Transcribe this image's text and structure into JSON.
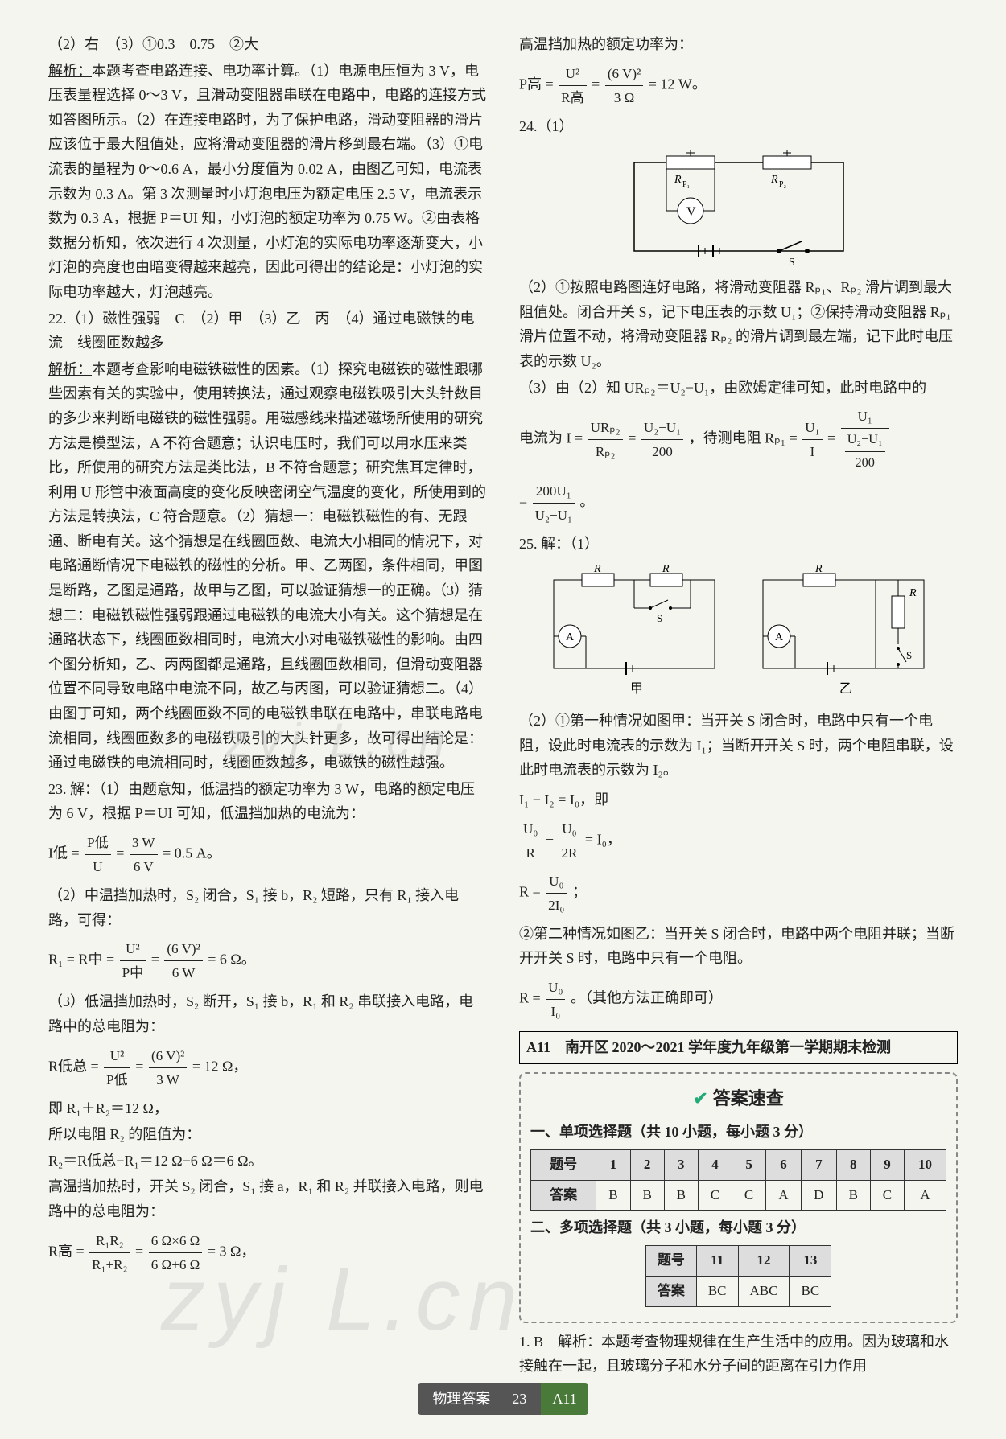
{
  "leftCol": {
    "l1": "（2）右　（3）①0.3　0.75　②大",
    "l2a": "解析：",
    "l2b": "本题考查电路连接、电功率计算。（1）电源电压恒为 3 V，电压表量程选择 0～3 V，且滑动变阻器串联在电路中，电路的连接方式如答图所示。（2）在连接电路时，为了保护电路，滑动变阻器的滑片应该位于最大阻值处，应将滑动变阻器的滑片移到最右端。（3）①电流表的量程为 0～0.6 A，最小分度值为 0.02 A，由图乙可知，电流表示数为 0.3 A。第 3 次测量时小灯泡电压为额定电压 2.5 V，电流表示数为 0.3 A，根据 P＝UI 知，小灯泡的额定功率为 0.75 W。②由表格数据分析知，依次进行 4 次测量，小灯泡的实际电功率逐渐变大，小灯泡的亮度也由暗变得越来越亮，因此可得出的结论是：小灯泡的实际电功率越大，灯泡越亮。",
    "l3": "22.（1）磁性强弱　C　（2）甲　（3）乙　丙　（4）通过电磁铁的电流　线圈匝数越多",
    "l4a": "解析：",
    "l4b": "本题考查影响电磁铁磁性的因素。（1）探究电磁铁的磁性跟哪些因素有关的实验中，使用转换法，通过观察电磁铁吸引大头针数目的多少来判断电磁铁的磁性强弱。用磁感线来描述磁场所使用的研究方法是模型法，A 不符合题意；认识电压时，我们可以用水压来类比，所使用的研究方法是类比法，B 不符合题意；研究焦耳定律时，利用 U 形管中液面高度的变化反映密闭空气温度的变化，所使用到的方法是转换法，C 符合题意。（2）猜想一：电磁铁磁性的有、无跟通、断电有关。这个猜想是在线圈匝数、电流大小相同的情况下，对电路通断情况下电磁铁的磁性的分析。甲、乙两图，条件相同，甲图是断路，乙图是通路，故甲与乙图，可以验证猜想一的正确。（3）猜想二：电磁铁磁性强弱跟通过电磁铁的电流大小有关。这个猜想是在通路状态下，线圈匝数相同时，电流大小对电磁铁磁性的影响。由四个图分析知，乙、丙两图都是通路，且线圈匝数相同，但滑动变阻器位置不同导致电路中电流不同，故乙与丙图，可以验证猜想二。（4）由图丁可知，两个线圈匝数不同的电磁铁串联在电路中，串联电路电流相同，线圈匝数多的电磁铁吸引的大头针更多，故可得出结论是：通过电磁铁的电流相同时，线圈匝数越多，电磁铁的磁性越强。",
    "l5": "23. 解：（1）由题意知，低温挡的额定功率为 3 W，电路的额定电压为 6 V，根据 P＝UI 可知，低温挡加热的电流为：",
    "eq5_lhs": "I低 =",
    "eq5_n1": "P低",
    "eq5_d1": "U",
    "eq5_n2": "3 W",
    "eq5_d2": "6 V",
    "eq5_rhs": "= 0.5 A。",
    "l6": "（2）中温挡加热时，S₂ 闭合，S₁ 接 b，R₂ 短路，只有 R₁ 接入电路，可得：",
    "eq6_lhs": "R₁ = R中 =",
    "eq6_n1": "U²",
    "eq6_d1": "P中",
    "eq6_n2": "(6 V)²",
    "eq6_d2": "6 W",
    "eq6_rhs": "= 6 Ω。",
    "l7": "（3）低温挡加热时，S₂ 断开，S₁ 接 b，R₁ 和 R₂ 串联接入电路，电路中的总电阻为：",
    "eq7_lhs": "R低总 =",
    "eq7_n1": "U²",
    "eq7_d1": "P低",
    "eq7_n2": "(6 V)²",
    "eq7_d2": "3 W",
    "eq7_rhs": "= 12 Ω，",
    "l8": "即 R₁＋R₂＝12 Ω，",
    "l9": "所以电阻 R₂ 的阻值为：",
    "l10": "R₂＝R低总−R₁＝12 Ω−6 Ω＝6 Ω。",
    "l11": "高温挡加热时，开关 S₂ 闭合，S₁ 接 a，R₁ 和 R₂ 并联接入电路，则电路中的总电阻为：",
    "eq11_lhs": "R高 =",
    "eq11_n1": "R₁R₂",
    "eq11_d1": "R₁+R₂",
    "eq11_n2": "6 Ω×6 Ω",
    "eq11_d2": "6 Ω+6 Ω",
    "eq11_rhs": "= 3 Ω，"
  },
  "rightCol": {
    "r1": "高温挡加热的额定功率为：",
    "eqR1_lhs": "P高 =",
    "eqR1_n1": "U²",
    "eqR1_d1": "R高",
    "eqR1_n2": "(6 V)²",
    "eqR1_d2": "3 Ω",
    "eqR1_rhs": "= 12 W。",
    "r2": "24.（1）",
    "diag24_R1": "R",
    "diag24_P1": "P₁",
    "diag24_R2": "R",
    "diag24_P2": "P₂",
    "diag24_V": "V",
    "diag24_S": "S",
    "r3": "（2）①按照电路图连好电路，将滑动变阻器 Rₚ₁、Rₚ₂ 滑片调到最大阻值处。闭合开关 S，记下电压表的示数 U₁；②保持滑动变阻器 Rₚ₁ 滑片位置不动，将滑动变阻器 Rₚ₂ 的滑片调到最左端，记下此时电压表的示数 U₂。",
    "r4": "（3）由（2）知 URₚ₂＝U₂−U₁，由欧姆定律可知，此时电路中的",
    "eqR4a_pre": "电流为 I =",
    "eqR4a_n1": "URₚ₂",
    "eqR4a_d1": "Rₚ₂",
    "eqR4a_n2": "U₂−U₁",
    "eqR4a_d2": "200",
    "eqR4a_mid": "，待测电阻 Rₚ₁ =",
    "eqR4a_n3": "U₁",
    "eqR4a_d3": "I",
    "eqR4a_n4": "U₁",
    "eqR4b_n": "200U₁",
    "eqR4b_d": "U₂−U₁",
    "eqR4b_post": "。",
    "r5": "25. 解：（1）",
    "diag25_R": "R",
    "diag25_A": "A",
    "diag25_S": "S",
    "diag25_cap1": "甲",
    "diag25_cap2": "乙",
    "r6": "（2）①第一种情况如图甲：当开关 S 闭合时，电路中只有一个电阻，设此时电流表的示数为 I₁；当断开开关 S 时，两个电阻串联，设此时电流表的示数为 I₂。",
    "eqR6a": "I₁ − I₂ = I₀，即",
    "eqR6b_n1": "U₀",
    "eqR6b_d1": "R",
    "eqR6b_mid": " − ",
    "eqR6b_n2": "U₀",
    "eqR6b_d2": "2R",
    "eqR6b_post": " = I₀，",
    "eqR6c_lhs": "R =",
    "eqR6c_n": "U₀",
    "eqR6c_d": "2I₀",
    "eqR6c_post": "；",
    "r7": "②第二种情况如图乙：当开关 S 闭合时，电路中两个电阻并联；当断开开关 S 时，电路中只有一个电阻。",
    "eqR7_lhs": "R =",
    "eqR7_n": "U₀",
    "eqR7_d": "I₀",
    "eqR7_post": "。（其他方法正确即可）",
    "sectionBox": "A11　南开区 2020～2021 学年度九年级第一学期期末检测",
    "ansTitle": "答案速查",
    "mcq1_heading": "一、单项选择题（共 10 小题，每小题 3 分）",
    "mcq1": {
      "header": [
        "题号",
        "1",
        "2",
        "3",
        "4",
        "5",
        "6",
        "7",
        "8",
        "9",
        "10"
      ],
      "row": [
        "答案",
        "B",
        "B",
        "B",
        "C",
        "C",
        "A",
        "D",
        "B",
        "C",
        "A"
      ]
    },
    "mcq2_heading": "二、多项选择题（共 3 小题，每小题 3 分）",
    "mcq2": {
      "header": [
        "题号",
        "11",
        "12",
        "13"
      ],
      "row": [
        "答案",
        "BC",
        "ABC",
        "BC"
      ]
    },
    "r8a": "1. B　解析：",
    "r8b": "本题考查物理规律在生产生活中的应用。因为玻璃和水接触在一起，且玻璃分子和水分子间的距离在引力作用"
  },
  "footer": {
    "left": "物理答案 — 23",
    "right": "A11"
  },
  "watermark": "zyj L.cn",
  "colors": {
    "bg": "#f5f5f0",
    "text": "#222",
    "tableHeader": "#ddd",
    "footerLeft": "#555",
    "footerRight": "#4a7a3a",
    "check": "#2a7"
  }
}
